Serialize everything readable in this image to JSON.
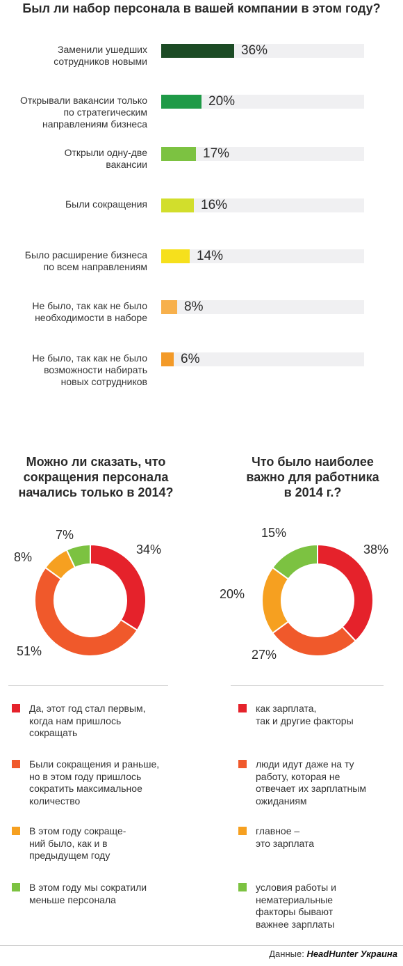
{
  "title": "Был ли набор персонала в вашей компании в этом году?",
  "source": {
    "prefix": "Данные:",
    "brand": "HeadHunter Украина"
  },
  "chart_data": [
    {
      "type": "bar",
      "title": "Был ли набор персонала в вашей компании в этом году?",
      "xlim": [
        0,
        100
      ],
      "categories": [
        "Заменили ушедших\nсотрудников новыми",
        "Открывали вакансии только\nпо стратегическим\nнаправлениям бизнеса",
        "Открыли одну-две\nвакансии",
        "Были сокращения",
        "Было расширение бизнеса\nпо всем направлениям",
        "Не было, так как не было\nнеобходимости в наборе",
        "Не было, так как не было\nвозможности набирать\nновых сотрудников"
      ],
      "values": [
        36,
        20,
        17,
        16,
        14,
        8,
        6
      ],
      "value_labels": [
        "36%",
        "20%",
        "17%",
        "16%",
        "14%",
        "8%",
        "6%"
      ],
      "colors": [
        "#1c4b25",
        "#1f9a47",
        "#7cc241",
        "#d2de2c",
        "#f6e01c",
        "#f7b04c",
        "#f39a28"
      ]
    },
    {
      "type": "pie",
      "title": "Можно ли сказать, что\nсокращения персонала\nначались только в 2014?",
      "labels": [
        "Да, этот год стал первым,\nкогда нам пришлось\nсокращать",
        "Были сокращения и раньше,\nно в этом году пришлось\nсократить максимальное\nколичество",
        "В этом году сокраще-\nний было, как и в\nпредыдущем году",
        "В этом году мы сократили\nменьше персонала"
      ],
      "values": [
        34,
        51,
        8,
        7
      ],
      "value_labels": [
        "34%",
        "51%",
        "8%",
        "7%"
      ],
      "colors": [
        "#e5222b",
        "#f0592b",
        "#f6a020",
        "#7cc241"
      ]
    },
    {
      "type": "pie",
      "title": "Что было наиболее\nважно для работника\nв 2014 г.?",
      "labels": [
        "как зарплата,\nтак и другие факторы",
        "люди идут даже на ту\nработу, которая не\nотвечает их зарплатным\nожиданиям",
        "главное –\nэто зарплата",
        "условия работы и\nнематериальные\nфакторы бывают\nважнее зарплаты"
      ],
      "values": [
        38,
        27,
        20,
        15
      ],
      "value_labels": [
        "38%",
        "27%",
        "20%",
        "15%"
      ],
      "colors": [
        "#e5222b",
        "#f0592b",
        "#f6a020",
        "#7cc241"
      ]
    }
  ]
}
